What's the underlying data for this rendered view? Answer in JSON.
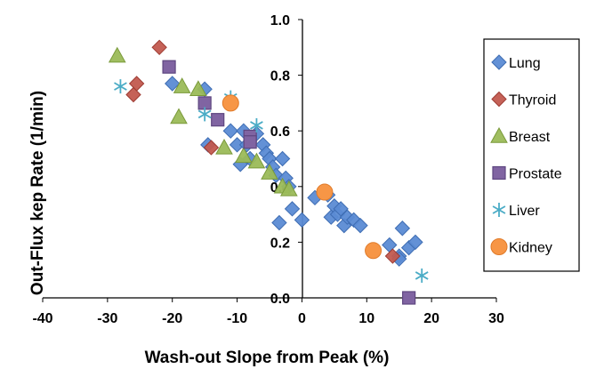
{
  "chart_data": {
    "type": "scatter",
    "title": "",
    "xlabel": "Wash-out Slope from Peak (%)",
    "ylabel": "Out-Flux kep Rate (1/min)",
    "xlim": [
      -40,
      30
    ],
    "ylim": [
      0.0,
      1.0
    ],
    "xticks": [
      "-40",
      "-30",
      "-20",
      "-10",
      "0",
      "10",
      "20",
      "30"
    ],
    "yticks": [
      "0.0",
      "0.2",
      "0.4",
      "0.6",
      "0.8",
      "1.0"
    ],
    "grid": false,
    "legend_position": "right",
    "series": [
      {
        "name": "Lung",
        "marker": "diamond",
        "color": "#5B8BD4",
        "stroke": "#3E6DB3",
        "points": [
          [
            -20,
            0.77
          ],
          [
            -15,
            0.75
          ],
          [
            -14.5,
            0.55
          ],
          [
            -11,
            0.6
          ],
          [
            -10,
            0.55
          ],
          [
            -9,
            0.6
          ],
          [
            -8,
            0.5
          ],
          [
            -7,
            0.59
          ],
          [
            -6,
            0.55
          ],
          [
            -5.5,
            0.52
          ],
          [
            -5,
            0.5
          ],
          [
            -4.5,
            0.47
          ],
          [
            -4,
            0.44
          ],
          [
            -3,
            0.5
          ],
          [
            -2.5,
            0.43
          ],
          [
            -1.5,
            0.32
          ],
          [
            -2,
            0.4
          ],
          [
            -3.5,
            0.27
          ],
          [
            -9.5,
            0.48
          ],
          [
            -8.5,
            0.55
          ],
          [
            0,
            0.28
          ],
          [
            2,
            0.36
          ],
          [
            4,
            0.37
          ],
          [
            4.5,
            0.29
          ],
          [
            5,
            0.33
          ],
          [
            5.5,
            0.3
          ],
          [
            6,
            0.32
          ],
          [
            6.5,
            0.26
          ],
          [
            7,
            0.29
          ],
          [
            8,
            0.28
          ],
          [
            9,
            0.26
          ],
          [
            13.5,
            0.19
          ],
          [
            15,
            0.15
          ],
          [
            15.5,
            0.25
          ],
          [
            16.5,
            0.18
          ],
          [
            17.5,
            0.2
          ],
          [
            15,
            0.14
          ]
        ]
      },
      {
        "name": "Thyroid",
        "marker": "diamond",
        "color": "#C25A4F",
        "stroke": "#9E3B32",
        "points": [
          [
            -22,
            0.9
          ],
          [
            -25.5,
            0.77
          ],
          [
            -26,
            0.73
          ],
          [
            -14,
            0.54
          ],
          [
            14,
            0.15
          ]
        ]
      },
      {
        "name": "Breast",
        "marker": "triangle",
        "color": "#9BBB59",
        "stroke": "#7A9A3A",
        "points": [
          [
            -28.5,
            0.87
          ],
          [
            -18.5,
            0.76
          ],
          [
            -16,
            0.75
          ],
          [
            -19,
            0.65
          ],
          [
            -12,
            0.54
          ],
          [
            -9,
            0.51
          ],
          [
            -7,
            0.49
          ],
          [
            -5,
            0.45
          ],
          [
            -3,
            0.4
          ],
          [
            -2,
            0.39
          ]
        ]
      },
      {
        "name": "Prostate",
        "marker": "square",
        "color": "#8064A2",
        "stroke": "#5E4680",
        "points": [
          [
            -20.5,
            0.83
          ],
          [
            -15,
            0.7
          ],
          [
            -13,
            0.64
          ],
          [
            -8,
            0.58
          ],
          [
            -8,
            0.56
          ],
          [
            16.5,
            0.0
          ]
        ]
      },
      {
        "name": "Liver",
        "marker": "asterisk",
        "color": "#4BACC6",
        "stroke": "#4BACC6",
        "points": [
          [
            -28,
            0.76
          ],
          [
            -11,
            0.72
          ],
          [
            -15,
            0.66
          ],
          [
            -7,
            0.62
          ],
          [
            18.5,
            0.08
          ]
        ]
      },
      {
        "name": "Kidney",
        "marker": "circle",
        "color": "#F79646",
        "stroke": "#E07B2A",
        "points": [
          [
            -11,
            0.7
          ],
          [
            3.5,
            0.38
          ],
          [
            11,
            0.17
          ]
        ]
      }
    ]
  }
}
